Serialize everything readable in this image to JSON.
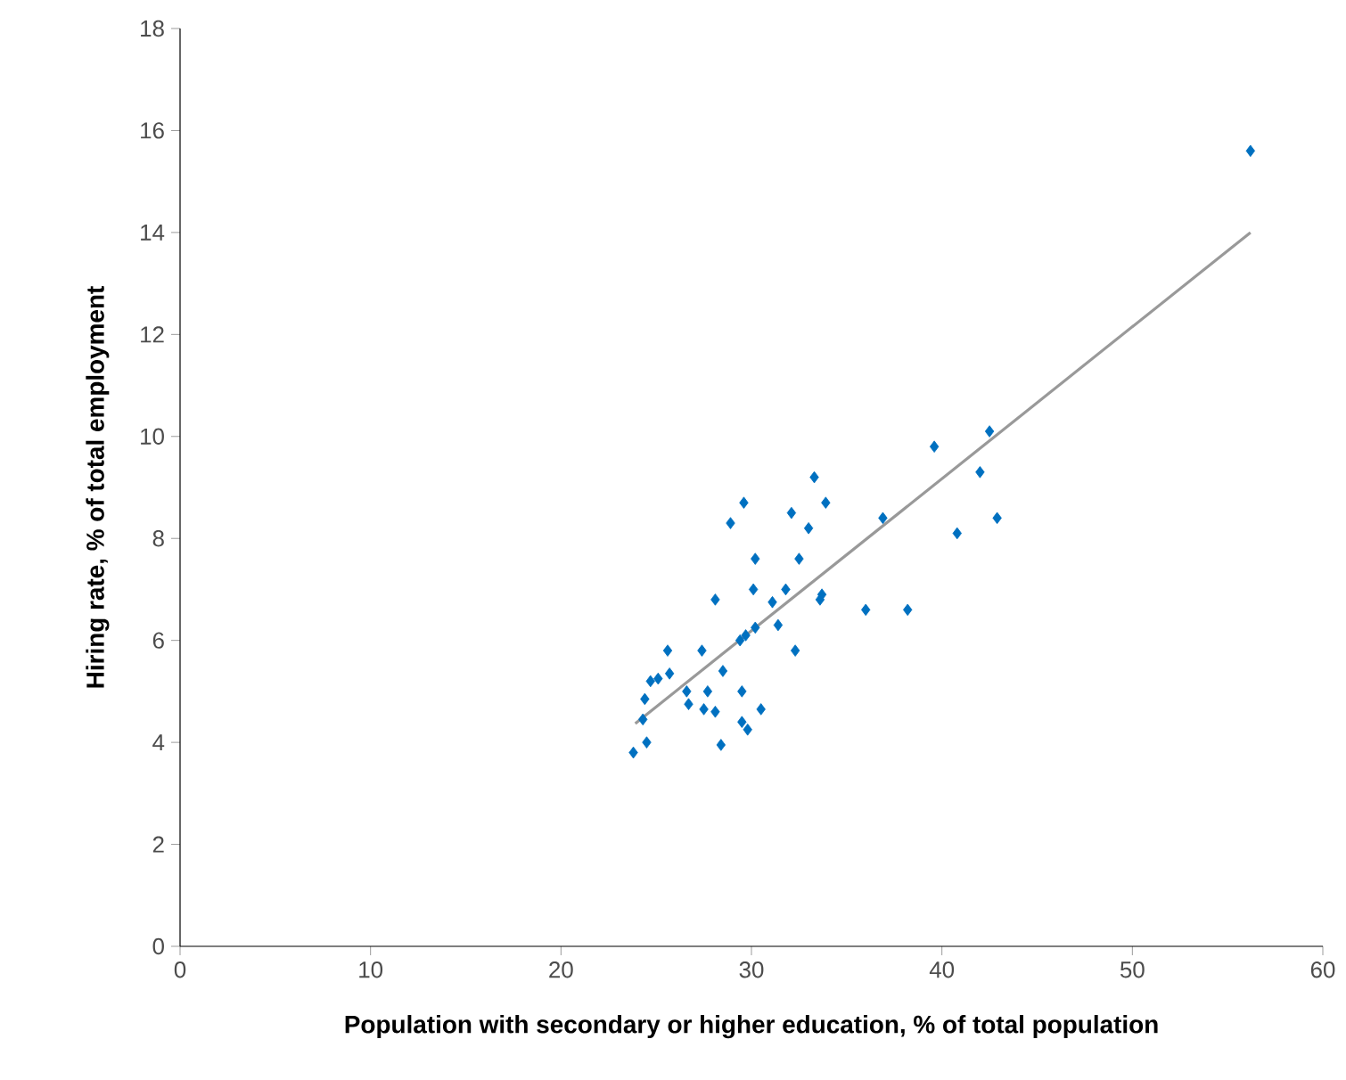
{
  "chart_data": {
    "type": "scatter",
    "xlabel": "Population with secondary or higher education, % of total population",
    "ylabel": "Hiring rate, % of total employment",
    "xlim": [
      0,
      60
    ],
    "ylim": [
      0,
      18
    ],
    "xticks": [
      0,
      10,
      20,
      30,
      40,
      50,
      60
    ],
    "yticks": [
      0,
      2,
      4,
      6,
      8,
      10,
      12,
      14,
      16,
      18
    ],
    "grid": false,
    "series": [
      {
        "marker": "diamond",
        "color": "#0070c0",
        "x": [
          56.2,
          42.5,
          39.6,
          42.0,
          42.9,
          40.8,
          38.2,
          36.0,
          36.9,
          33.3,
          33.9,
          29.6,
          28.9,
          32.1,
          33.0,
          30.2,
          32.5,
          31.8,
          33.7,
          33.6,
          30.1,
          31.1,
          28.1,
          31.4,
          30.2,
          29.7,
          29.4,
          32.3,
          25.6,
          27.4,
          28.5,
          25.7,
          25.1,
          24.7,
          24.4,
          26.6,
          27.7,
          26.7,
          27.5,
          28.1,
          29.5,
          30.5,
          29.5,
          29.8,
          24.3,
          24.5,
          28.4,
          23.8
        ],
        "values": [
          15.6,
          10.1,
          9.8,
          9.3,
          8.4,
          8.1,
          6.6,
          6.6,
          8.4,
          9.2,
          8.7,
          8.7,
          8.3,
          8.5,
          8.2,
          7.6,
          7.6,
          7.0,
          6.9,
          6.8,
          7.0,
          6.75,
          6.8,
          6.3,
          6.25,
          6.1,
          6.0,
          5.8,
          5.8,
          5.8,
          5.4,
          5.35,
          5.25,
          5.2,
          4.85,
          5.0,
          5.0,
          4.75,
          4.65,
          4.6,
          5.0,
          4.65,
          4.4,
          4.25,
          4.45,
          4.0,
          3.95,
          3.8
        ]
      },
      {
        "type": "line",
        "marker": "none",
        "color": "#999999",
        "x": [
          23.9,
          56.2
        ],
        "values": [
          4.37,
          14.0
        ]
      }
    ]
  }
}
